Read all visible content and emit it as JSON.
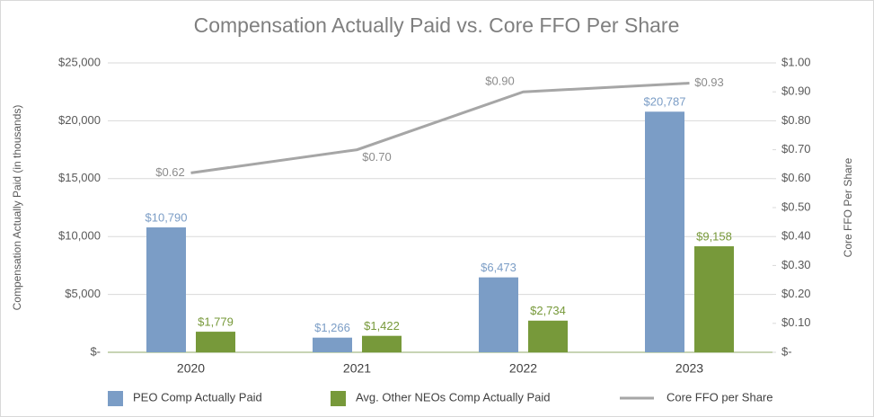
{
  "chart_data": {
    "type": "bar_line",
    "title": "Compensation Actually Paid vs. Core FFO Per Share",
    "y_label": "Compensation Actually Paid (in thousands)",
    "y2_label": "Core FFO Per Share",
    "categories": [
      "2020",
      "2021",
      "2022",
      "2023"
    ],
    "series": [
      {
        "name": "PEO Comp Actually Paid",
        "type": "bar",
        "color": "#7b9dc6",
        "values": [
          10790,
          1266,
          6473,
          20787
        ],
        "value_labels": [
          "$10,790",
          "$1,266",
          "$6,473",
          "$20,787"
        ]
      },
      {
        "name": "Avg. Other NEOs Comp Actually Paid",
        "type": "bar",
        "color": "#77993a",
        "values": [
          1779,
          1422,
          2734,
          9158
        ],
        "value_labels": [
          "$1,779",
          "$1,422",
          "$2,734",
          "$9,158"
        ]
      },
      {
        "name": "Core FFO per Share",
        "type": "line",
        "axis": "y2",
        "color": "#a6a6a6",
        "values": [
          0.62,
          0.7,
          0.9,
          0.93
        ],
        "value_labels": [
          "$0.62",
          "$0.70",
          "$0.90",
          "$0.93"
        ]
      }
    ],
    "ylim": [
      0,
      25000
    ],
    "yticks": [
      {
        "value": 0,
        "label": "$-"
      },
      {
        "value": 5000,
        "label": "$5,000"
      },
      {
        "value": 10000,
        "label": "$10,000"
      },
      {
        "value": 15000,
        "label": "$15,000"
      },
      {
        "value": 20000,
        "label": "$20,000"
      },
      {
        "value": 25000,
        "label": "$25,000"
      }
    ],
    "y2lim": [
      0,
      1.0
    ],
    "y2ticks": [
      {
        "value": 0,
        "label": "$-"
      },
      {
        "value": 0.1,
        "label": "$0.10"
      },
      {
        "value": 0.2,
        "label": "$0.20"
      },
      {
        "value": 0.3,
        "label": "$0.30"
      },
      {
        "value": 0.4,
        "label": "$0.40"
      },
      {
        "value": 0.5,
        "label": "$0.50"
      },
      {
        "value": 0.6,
        "label": "$0.60"
      },
      {
        "value": 0.7,
        "label": "$0.70"
      },
      {
        "value": 0.8,
        "label": "$0.80"
      },
      {
        "value": 0.9,
        "label": "$0.90"
      },
      {
        "value": 1.0,
        "label": "$1.00"
      }
    ],
    "grid": true,
    "legend": "bottom"
  }
}
